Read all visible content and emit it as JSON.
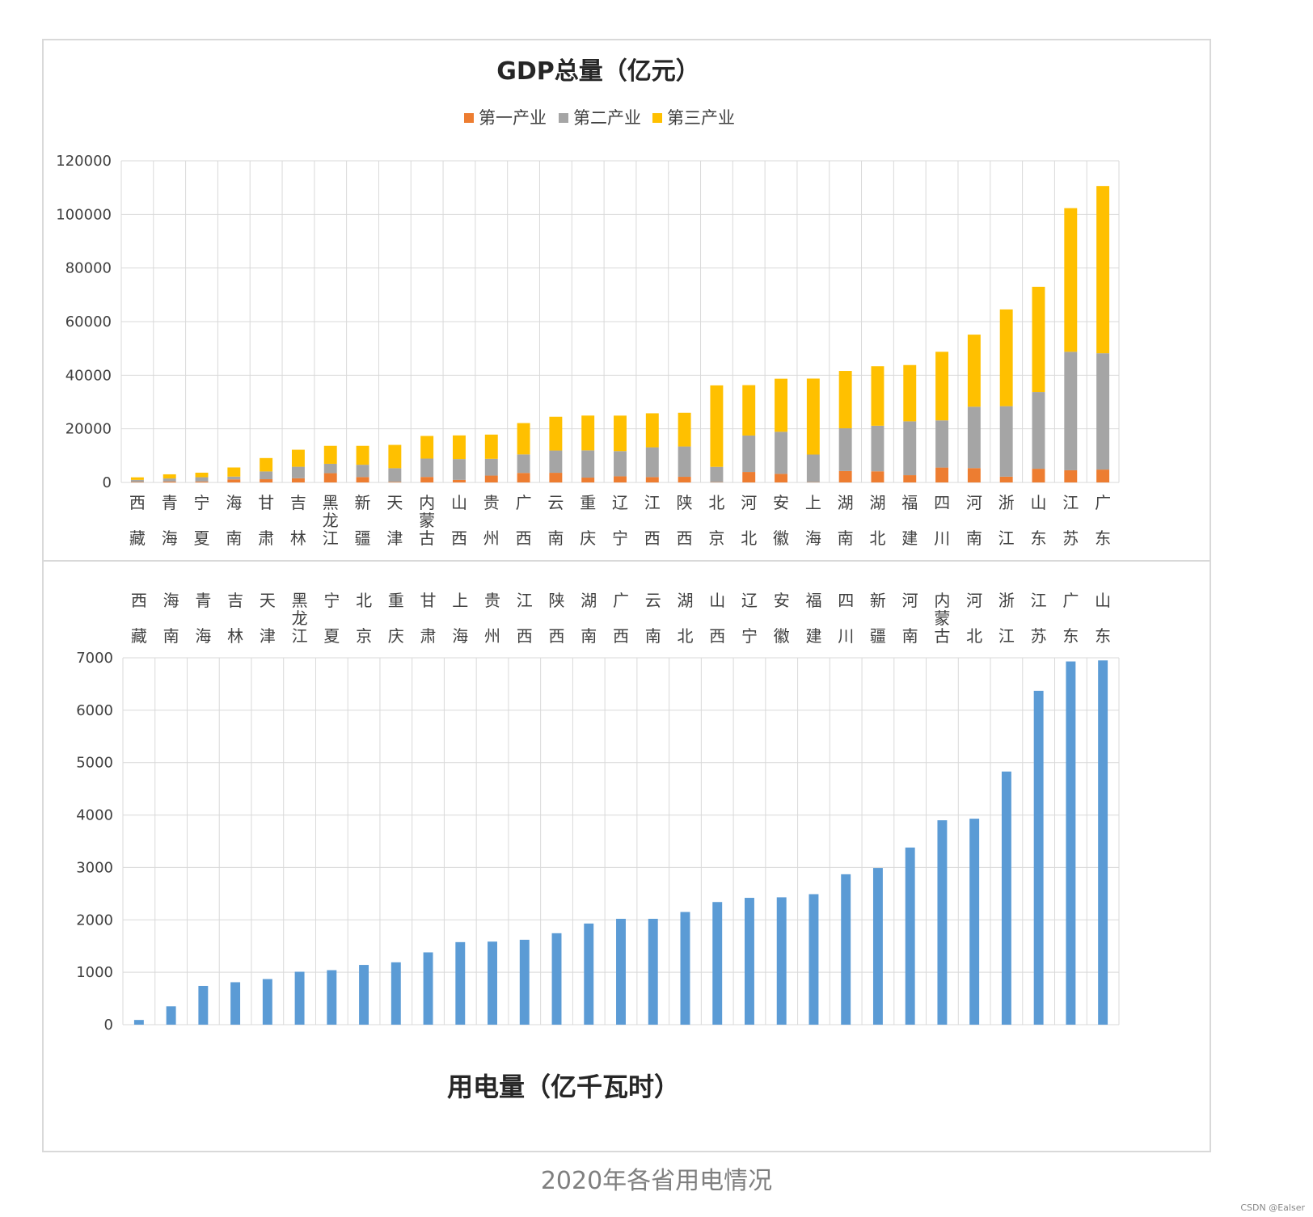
{
  "chart_data": [
    {
      "type": "bar",
      "stacked": true,
      "title": "GDP总量（亿元）",
      "legend_position": "top",
      "grid": true,
      "ylim": [
        0,
        120000
      ],
      "yticks": [
        0,
        20000,
        40000,
        60000,
        80000,
        100000,
        120000
      ],
      "categories": [
        "西藏",
        "青海",
        "宁夏",
        "海南",
        "甘肃",
        "吉林",
        "黑龙江",
        "新疆",
        "天津",
        "内蒙古",
        "山西",
        "贵州",
        "广西",
        "云南",
        "重庆",
        "辽宁",
        "江西",
        "陕西",
        "北京",
        "河北",
        "安徽",
        "上海",
        "湖南",
        "湖北",
        "福建",
        "四川",
        "河南",
        "浙江",
        "山东",
        "江苏",
        "广东"
      ],
      "series": [
        {
          "name": "第一产业",
          "color": "#ED7D31",
          "values": [
            150,
            330,
            340,
            1130,
            1200,
            1550,
            3450,
            2000,
            210,
            2050,
            950,
            2550,
            3550,
            3600,
            1800,
            2280,
            2000,
            2100,
            110,
            3900,
            3200,
            100,
            4250,
            4150,
            2700,
            5550,
            5350,
            2150,
            5100,
            4550,
            4800
          ]
        },
        {
          "name": "第二产业",
          "color": "#A5A5A5",
          "values": [
            800,
            1150,
            1600,
            1050,
            2900,
            4300,
            3500,
            4600,
            5100,
            6850,
            7750,
            6250,
            6900,
            8300,
            10150,
            9400,
            11100,
            11300,
            5700,
            13600,
            15700,
            10300,
            15950,
            17000,
            20100,
            17600,
            22900,
            26300,
            28650,
            44200,
            43400
          ]
        },
        {
          "name": "第三产业",
          "color": "#FFC000",
          "values": [
            950,
            1550,
            1700,
            3400,
            5000,
            6350,
            6700,
            7050,
            8700,
            8450,
            8850,
            9050,
            11700,
            12600,
            13000,
            13250,
            12700,
            12600,
            30400,
            18800,
            19800,
            28350,
            21400,
            22200,
            21000,
            25600,
            26900,
            36100,
            39250,
            53600,
            62400
          ]
        }
      ]
    },
    {
      "type": "bar",
      "title": "用电量（亿千瓦时）",
      "grid": true,
      "ylim": [
        0,
        7000
      ],
      "yticks": [
        0,
        1000,
        2000,
        3000,
        4000,
        5000,
        6000,
        7000
      ],
      "categories": [
        "西藏",
        "海南",
        "青海",
        "吉林",
        "天津",
        "黑龙江",
        "宁夏",
        "北京",
        "重庆",
        "甘肃",
        "上海",
        "贵州",
        "江西",
        "陕西",
        "湖南",
        "广西",
        "云南",
        "湖北",
        "山西",
        "辽宁",
        "安徽",
        "福建",
        "四川",
        "新疆",
        "河南",
        "内蒙古",
        "河北",
        "浙江",
        "江苏",
        "广东",
        "山东"
      ],
      "series": [
        {
          "color": "#5B9BD5",
          "values": [
            90,
            350,
            740,
            810,
            870,
            1010,
            1040,
            1140,
            1190,
            1380,
            1575,
            1585,
            1620,
            1745,
            1930,
            2020,
            2020,
            2150,
            2340,
            2420,
            2430,
            2490,
            2870,
            2990,
            3380,
            3900,
            3930,
            4830,
            6370,
            6930,
            6950
          ]
        }
      ]
    }
  ],
  "caption": "2020年各省用电情况",
  "watermark": "CSDN @Ealser"
}
